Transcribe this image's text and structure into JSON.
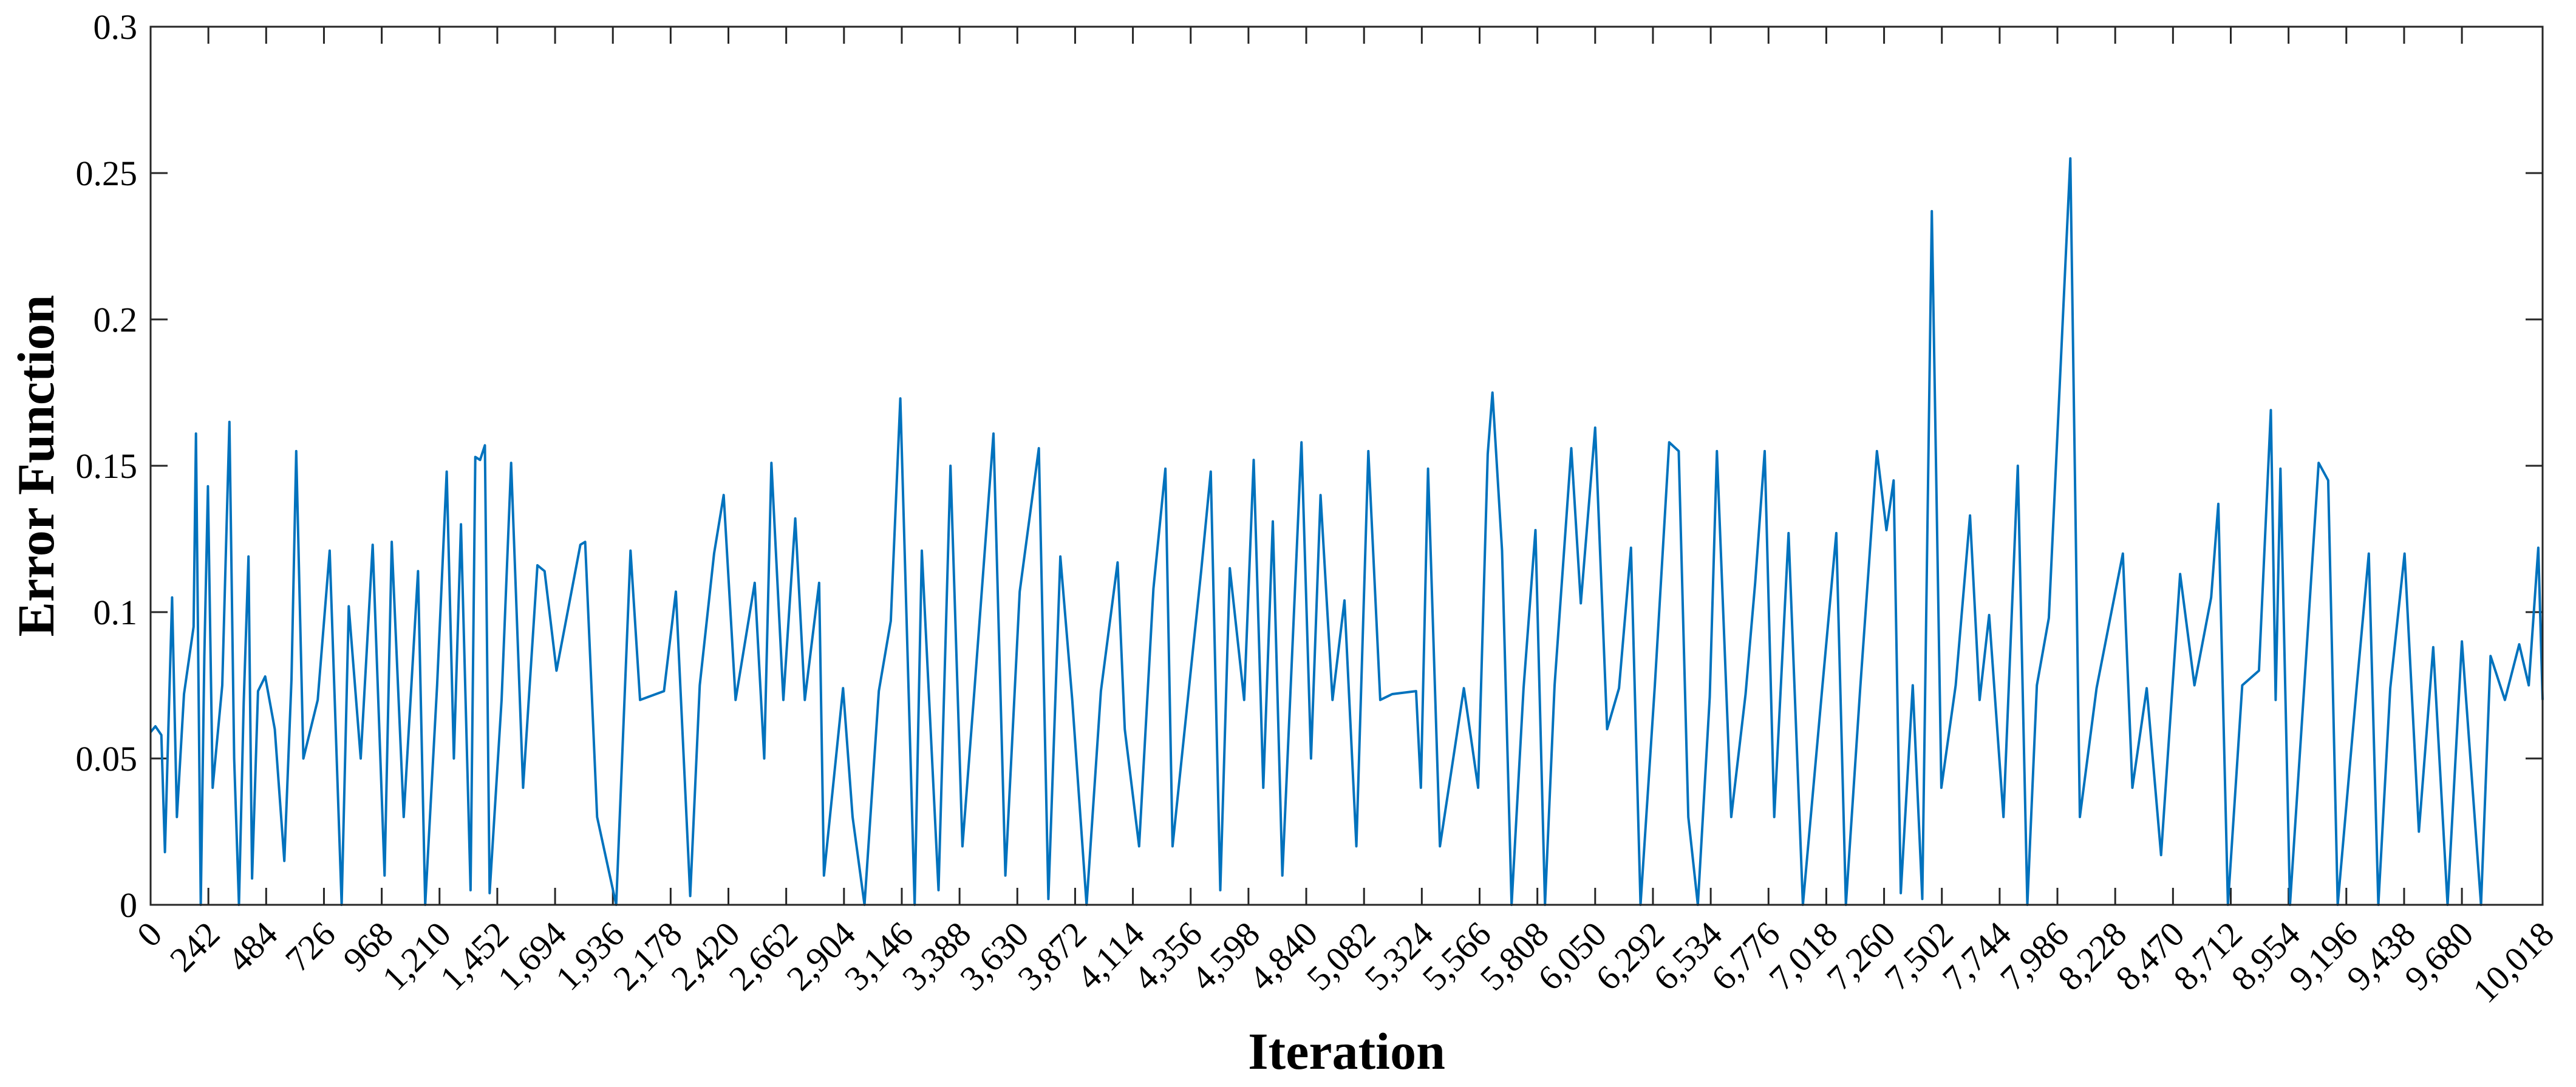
{
  "chart_data": {
    "type": "line",
    "xlabel": "Iteration",
    "ylabel": "Error Function",
    "xlim": [
      0,
      10018
    ],
    "ylim": [
      0,
      0.3
    ],
    "grid": false,
    "line_color": "#0072BD",
    "x_ticks": [
      0,
      242,
      484,
      726,
      968,
      1210,
      1452,
      1694,
      1936,
      2178,
      2420,
      2662,
      2904,
      3146,
      3388,
      3630,
      3872,
      4114,
      4356,
      4598,
      4840,
      5082,
      5324,
      5566,
      5808,
      6050,
      6292,
      6534,
      6776,
      7018,
      7260,
      7502,
      7744,
      7986,
      8228,
      8470,
      8712,
      8954,
      9196,
      9438,
      9680,
      10018
    ],
    "x_tick_labels": [
      "0",
      "242",
      "484",
      "726",
      "968",
      "1,210",
      "1,452",
      "1,694",
      "1,936",
      "2,178",
      "2,420",
      "2,662",
      "2,904",
      "3,146",
      "3,388",
      "3,630",
      "3,872",
      "4,114",
      "4,356",
      "4,598",
      "4,840",
      "5,082",
      "5,324",
      "5,566",
      "5,808",
      "6,050",
      "6,292",
      "6,534",
      "6,776",
      "7,018",
      "7,260",
      "7,502",
      "7,744",
      "7,986",
      "8,228",
      "8,470",
      "8,712",
      "8,954",
      "9,196",
      "9,438",
      "9,680",
      "10,018"
    ],
    "y_ticks": [
      0,
      0.05,
      0.1,
      0.15,
      0.2,
      0.25,
      0.3
    ],
    "y_tick_labels": [
      "0",
      "0.05",
      "0.1",
      "0.15",
      "0.2",
      "0.25",
      "0.3"
    ],
    "series": [
      {
        "points": [
          [
            0,
            0.059
          ],
          [
            20,
            0.061
          ],
          [
            45,
            0.058
          ],
          [
            60,
            0.018
          ],
          [
            75,
            0.062
          ],
          [
            90,
            0.105
          ],
          [
            110,
            0.03
          ],
          [
            140,
            0.072
          ],
          [
            180,
            0.095
          ],
          [
            190,
            0.161
          ],
          [
            210,
            0.0
          ],
          [
            225,
            0.085
          ],
          [
            240,
            0.143
          ],
          [
            260,
            0.04
          ],
          [
            300,
            0.075
          ],
          [
            330,
            0.165
          ],
          [
            350,
            0.05
          ],
          [
            370,
            0.0
          ],
          [
            390,
            0.069
          ],
          [
            410,
            0.119
          ],
          [
            425,
            0.009
          ],
          [
            450,
            0.073
          ],
          [
            480,
            0.078
          ],
          [
            520,
            0.06
          ],
          [
            560,
            0.015
          ],
          [
            590,
            0.077
          ],
          [
            610,
            0.155
          ],
          [
            640,
            0.05
          ],
          [
            700,
            0.07
          ],
          [
            750,
            0.121
          ],
          [
            800,
            0.0
          ],
          [
            830,
            0.102
          ],
          [
            880,
            0.05
          ],
          [
            930,
            0.123
          ],
          [
            980,
            0.01
          ],
          [
            1010,
            0.124
          ],
          [
            1060,
            0.03
          ],
          [
            1120,
            0.114
          ],
          [
            1150,
            0.0
          ],
          [
            1200,
            0.075
          ],
          [
            1240,
            0.148
          ],
          [
            1270,
            0.05
          ],
          [
            1300,
            0.13
          ],
          [
            1340,
            0.005
          ],
          [
            1360,
            0.153
          ],
          [
            1380,
            0.152
          ],
          [
            1400,
            0.157
          ],
          [
            1420,
            0.004
          ],
          [
            1470,
            0.07
          ],
          [
            1510,
            0.151
          ],
          [
            1560,
            0.04
          ],
          [
            1620,
            0.116
          ],
          [
            1650,
            0.114
          ],
          [
            1700,
            0.08
          ],
          [
            1800,
            0.123
          ],
          [
            1820,
            0.124
          ],
          [
            1870,
            0.03
          ],
          [
            1950,
            0.0
          ],
          [
            2010,
            0.121
          ],
          [
            2050,
            0.07
          ],
          [
            2150,
            0.073
          ],
          [
            2200,
            0.107
          ],
          [
            2260,
            0.003
          ],
          [
            2300,
            0.075
          ],
          [
            2360,
            0.12
          ],
          [
            2380,
            0.13
          ],
          [
            2400,
            0.14
          ],
          [
            2450,
            0.07
          ],
          [
            2530,
            0.11
          ],
          [
            2570,
            0.05
          ],
          [
            2600,
            0.151
          ],
          [
            2650,
            0.07
          ],
          [
            2700,
            0.132
          ],
          [
            2740,
            0.07
          ],
          [
            2800,
            0.11
          ],
          [
            2820,
            0.01
          ],
          [
            2900,
            0.074
          ],
          [
            2940,
            0.03
          ],
          [
            2990,
            0.0
          ],
          [
            3050,
            0.073
          ],
          [
            3100,
            0.097
          ],
          [
            3140,
            0.173
          ],
          [
            3200,
            0.0
          ],
          [
            3230,
            0.121
          ],
          [
            3300,
            0.005
          ],
          [
            3350,
            0.15
          ],
          [
            3400,
            0.02
          ],
          [
            3450,
            0.073
          ],
          [
            3530,
            0.161
          ],
          [
            3580,
            0.01
          ],
          [
            3640,
            0.107
          ],
          [
            3720,
            0.156
          ],
          [
            3760,
            0.002
          ],
          [
            3810,
            0.119
          ],
          [
            3860,
            0.07
          ],
          [
            3920,
            0.0
          ],
          [
            3980,
            0.073
          ],
          [
            4050,
            0.117
          ],
          [
            4080,
            0.06
          ],
          [
            4140,
            0.02
          ],
          [
            4200,
            0.108
          ],
          [
            4250,
            0.149
          ],
          [
            4280,
            0.02
          ],
          [
            4350,
            0.075
          ],
          [
            4400,
            0.114
          ],
          [
            4440,
            0.148
          ],
          [
            4480,
            0.005
          ],
          [
            4520,
            0.115
          ],
          [
            4580,
            0.07
          ],
          [
            4620,
            0.152
          ],
          [
            4660,
            0.04
          ],
          [
            4700,
            0.131
          ],
          [
            4740,
            0.01
          ],
          [
            4820,
            0.158
          ],
          [
            4860,
            0.05
          ],
          [
            4900,
            0.14
          ],
          [
            4950,
            0.07
          ],
          [
            5000,
            0.104
          ],
          [
            5050,
            0.02
          ],
          [
            5100,
            0.155
          ],
          [
            5150,
            0.07
          ],
          [
            5200,
            0.072
          ],
          [
            5300,
            0.073
          ],
          [
            5320,
            0.04
          ],
          [
            5350,
            0.149
          ],
          [
            5400,
            0.02
          ],
          [
            5500,
            0.074
          ],
          [
            5560,
            0.04
          ],
          [
            5600,
            0.154
          ],
          [
            5620,
            0.175
          ],
          [
            5660,
            0.121
          ],
          [
            5700,
            0.0
          ],
          [
            5750,
            0.074
          ],
          [
            5800,
            0.128
          ],
          [
            5840,
            0.0
          ],
          [
            5880,
            0.075
          ],
          [
            5950,
            0.156
          ],
          [
            5990,
            0.103
          ],
          [
            6050,
            0.163
          ],
          [
            6100,
            0.06
          ],
          [
            6150,
            0.074
          ],
          [
            6200,
            0.122
          ],
          [
            6240,
            0.0
          ],
          [
            6300,
            0.075
          ],
          [
            6360,
            0.158
          ],
          [
            6400,
            0.155
          ],
          [
            6440,
            0.03
          ],
          [
            6480,
            0.0
          ],
          [
            6530,
            0.071
          ],
          [
            6560,
            0.155
          ],
          [
            6620,
            0.03
          ],
          [
            6680,
            0.072
          ],
          [
            6720,
            0.11
          ],
          [
            6760,
            0.155
          ],
          [
            6800,
            0.03
          ],
          [
            6860,
            0.127
          ],
          [
            6920,
            0.0
          ],
          [
            7000,
            0.073
          ],
          [
            7060,
            0.127
          ],
          [
            7100,
            0.0
          ],
          [
            7160,
            0.074
          ],
          [
            7230,
            0.155
          ],
          [
            7270,
            0.128
          ],
          [
            7300,
            0.145
          ],
          [
            7330,
            0.004
          ],
          [
            7380,
            0.075
          ],
          [
            7420,
            0.002
          ],
          [
            7460,
            0.237
          ],
          [
            7500,
            0.04
          ],
          [
            7560,
            0.075
          ],
          [
            7620,
            0.133
          ],
          [
            7660,
            0.07
          ],
          [
            7700,
            0.099
          ],
          [
            7760,
            0.03
          ],
          [
            7820,
            0.15
          ],
          [
            7860,
            0.0
          ],
          [
            7900,
            0.075
          ],
          [
            7950,
            0.098
          ],
          [
            8040,
            0.255
          ],
          [
            8080,
            0.03
          ],
          [
            8150,
            0.074
          ],
          [
            8200,
            0.095
          ],
          [
            8260,
            0.12
          ],
          [
            8300,
            0.04
          ],
          [
            8360,
            0.074
          ],
          [
            8420,
            0.017
          ],
          [
            8500,
            0.113
          ],
          [
            8560,
            0.075
          ],
          [
            8630,
            0.105
          ],
          [
            8660,
            0.137
          ],
          [
            8700,
            0.0
          ],
          [
            8760,
            0.075
          ],
          [
            8830,
            0.08
          ],
          [
            8880,
            0.169
          ],
          [
            8900,
            0.07
          ],
          [
            8920,
            0.149
          ],
          [
            8960,
            0.0
          ],
          [
            9020,
            0.075
          ],
          [
            9080,
            0.151
          ],
          [
            9120,
            0.145
          ],
          [
            9160,
            0.0
          ],
          [
            9240,
            0.075
          ],
          [
            9290,
            0.12
          ],
          [
            9330,
            0.0
          ],
          [
            9380,
            0.074
          ],
          [
            9440,
            0.12
          ],
          [
            9500,
            0.025
          ],
          [
            9560,
            0.088
          ],
          [
            9620,
            0.0
          ],
          [
            9680,
            0.09
          ],
          [
            9760,
            0.0
          ],
          [
            9800,
            0.085
          ],
          [
            9860,
            0.07
          ],
          [
            9920,
            0.089
          ],
          [
            9960,
            0.075
          ],
          [
            10000,
            0.122
          ],
          [
            10018,
            0.07
          ]
        ]
      }
    ]
  }
}
